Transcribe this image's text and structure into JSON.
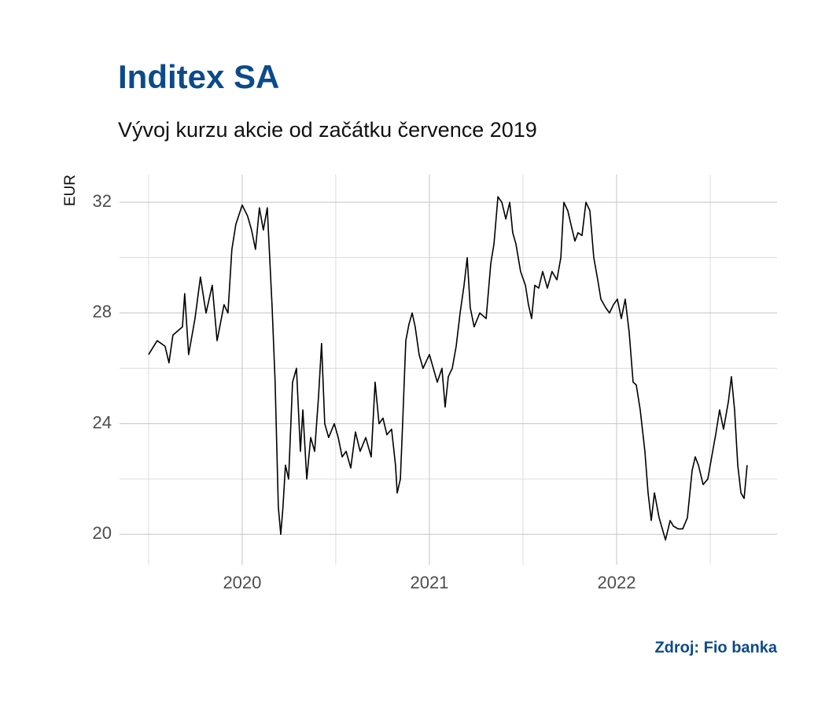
{
  "chart_data": {
    "type": "line",
    "title": "Inditex SA",
    "subtitle": "Vývoj kurzu akcie od začátku července 2019",
    "y_label": "EUR",
    "source": "Zdroj: Fio banka",
    "color": "#000000",
    "grid": true,
    "xlim": [
      2019.345,
      2022.857
    ],
    "xticks": [
      2020,
      2021,
      2022
    ],
    "ylim": [
      18.9,
      33
    ],
    "yticks": [
      20,
      24,
      28,
      32
    ],
    "x": [
      2019.5,
      2019.546,
      2019.588,
      2019.609,
      2019.63,
      2019.681,
      2019.693,
      2019.714,
      2019.748,
      2019.777,
      2019.807,
      2019.84,
      2019.866,
      2019.903,
      2019.924,
      2019.945,
      2019.966,
      2020.0,
      2020.029,
      2020.05,
      2020.071,
      2020.092,
      2020.113,
      2020.134,
      2020.147,
      2020.16,
      2020.176,
      2020.193,
      2020.206,
      2020.218,
      2020.231,
      2020.248,
      2020.269,
      2020.29,
      2020.311,
      2020.324,
      2020.345,
      2020.366,
      2020.387,
      2020.408,
      2020.424,
      2020.441,
      2020.462,
      2020.492,
      2020.513,
      2020.534,
      2020.555,
      2020.58,
      2020.605,
      2020.63,
      2020.66,
      2020.689,
      2020.71,
      2020.731,
      2020.752,
      2020.773,
      2020.798,
      2020.819,
      2020.828,
      2020.845,
      2020.857,
      2020.874,
      2020.891,
      2020.908,
      2020.924,
      2020.945,
      2020.966,
      2021.0,
      2021.021,
      2021.042,
      2021.067,
      2021.084,
      2021.101,
      2021.122,
      2021.143,
      2021.164,
      2021.185,
      2021.202,
      2021.218,
      2021.239,
      2021.269,
      2021.303,
      2021.328,
      2021.345,
      2021.366,
      2021.387,
      2021.408,
      2021.429,
      2021.445,
      2021.462,
      2021.487,
      2021.513,
      2021.529,
      2021.546,
      2021.563,
      2021.584,
      2021.605,
      2021.63,
      2021.655,
      2021.681,
      2021.702,
      2021.718,
      2021.739,
      2021.756,
      2021.777,
      2021.794,
      2021.815,
      2021.836,
      2021.857,
      2021.878,
      2021.899,
      2021.916,
      2021.941,
      2021.962,
      2021.983,
      2022.004,
      2022.025,
      2022.046,
      2022.067,
      2022.088,
      2022.105,
      2022.126,
      2022.151,
      2022.168,
      2022.185,
      2022.202,
      2022.227,
      2022.244,
      2022.261,
      2022.286,
      2022.303,
      2022.328,
      2022.353,
      2022.378,
      2022.403,
      2022.42,
      2022.437,
      2022.462,
      2022.487,
      2022.513,
      2022.529,
      2022.55,
      2022.571,
      2022.597,
      2022.613,
      2022.63,
      2022.647,
      2022.664,
      2022.681,
      2022.697
    ],
    "values": [
      26.5,
      27.0,
      26.8,
      26.2,
      27.2,
      27.5,
      28.7,
      26.5,
      27.8,
      29.3,
      28.0,
      29.0,
      27.0,
      28.3,
      28.0,
      30.3,
      31.2,
      31.9,
      31.5,
      31.0,
      30.3,
      31.8,
      31.0,
      31.8,
      30.0,
      28.2,
      25.5,
      21.0,
      20.0,
      21.0,
      22.5,
      22.0,
      25.5,
      26.0,
      23.0,
      24.5,
      22.0,
      23.5,
      23.0,
      25.0,
      26.9,
      24.0,
      23.5,
      24.0,
      23.5,
      22.8,
      23.0,
      22.4,
      23.7,
      23.0,
      23.5,
      22.8,
      25.5,
      24.0,
      24.2,
      23.6,
      23.8,
      22.5,
      21.5,
      22.0,
      24.0,
      27.0,
      27.6,
      28.0,
      27.5,
      26.5,
      26.0,
      26.5,
      26.0,
      25.5,
      26.0,
      24.6,
      25.7,
      26.0,
      26.8,
      28.0,
      29.0,
      30.0,
      28.2,
      27.5,
      28.0,
      27.8,
      29.8,
      30.5,
      32.2,
      32.0,
      31.4,
      32.0,
      30.9,
      30.5,
      29.5,
      29.0,
      28.3,
      27.8,
      29.0,
      28.9,
      29.5,
      28.9,
      29.5,
      29.2,
      30.0,
      32.0,
      31.7,
      31.2,
      30.6,
      30.9,
      30.8,
      32.0,
      31.7,
      30.0,
      29.2,
      28.5,
      28.2,
      28.0,
      28.3,
      28.5,
      27.8,
      28.5,
      27.3,
      25.5,
      25.4,
      24.5,
      23.0,
      21.5,
      20.5,
      21.5,
      20.6,
      20.2,
      19.8,
      20.5,
      20.3,
      20.2,
      20.2,
      20.6,
      22.3,
      22.8,
      22.5,
      21.8,
      22.0,
      23.0,
      23.6,
      24.5,
      23.8,
      24.8,
      25.7,
      24.5,
      22.5,
      21.5,
      21.3,
      22.5
    ]
  }
}
